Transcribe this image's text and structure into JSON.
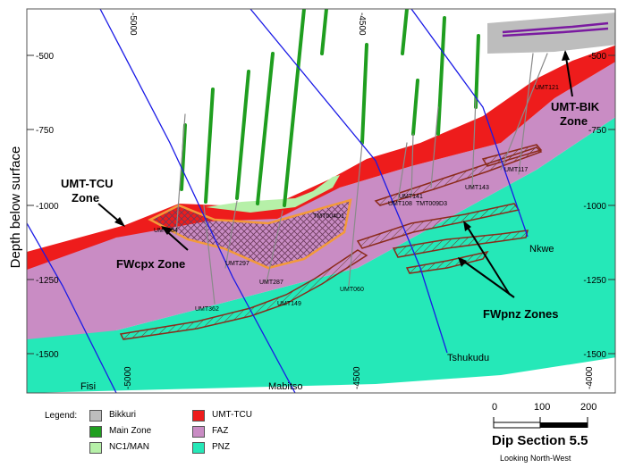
{
  "axis": {
    "y_title": "Depth below surface",
    "left_ticks": [
      "-500",
      "-750",
      "-1000",
      "-1250",
      "-1500"
    ],
    "right_ticks": [
      "-500",
      "-750",
      "-1000",
      "-1250",
      "-1500"
    ],
    "top_ticks": [
      "-5000",
      "-4500"
    ],
    "bottom_ticks": [
      "-5000",
      "-4500",
      "-4000"
    ]
  },
  "zones": {
    "umt_tcu": "UMT-TCU\nZone",
    "umt_bik": "UMT-BIK\nZone",
    "fwcpx": "FWcpx Zone",
    "fwpnz": "FWpnz Zones"
  },
  "faults": [
    "Fisi",
    "Mabitso",
    "Tshukudu",
    "Nkwe"
  ],
  "boreholes": [
    "UMT121",
    "UMT117",
    "UMT143",
    "UMT141",
    "UMT108",
    "TMT009D3",
    "TMT004D1",
    "UMT384",
    "UMT297",
    "UMT287",
    "UMT362",
    "UMT149",
    "UMT060"
  ],
  "legend": {
    "title": "Legend:",
    "items": [
      {
        "label": "Bikkuri",
        "color": "#bdbdbd"
      },
      {
        "label": "Main Zone",
        "color": "#1f9e1f"
      },
      {
        "label": "NC1/MAN",
        "color": "#b6f0a8"
      },
      {
        "label": "UMT-TCU",
        "color": "#ee1c1c"
      },
      {
        "label": "FAZ",
        "color": "#c98cc4"
      },
      {
        "label": "PNZ",
        "color": "#25e8b8"
      }
    ]
  },
  "scale_bar": {
    "labels": [
      "0",
      "100",
      "200"
    ],
    "title": "Dip Section 5.5",
    "subtitle": "Looking North-West"
  }
}
